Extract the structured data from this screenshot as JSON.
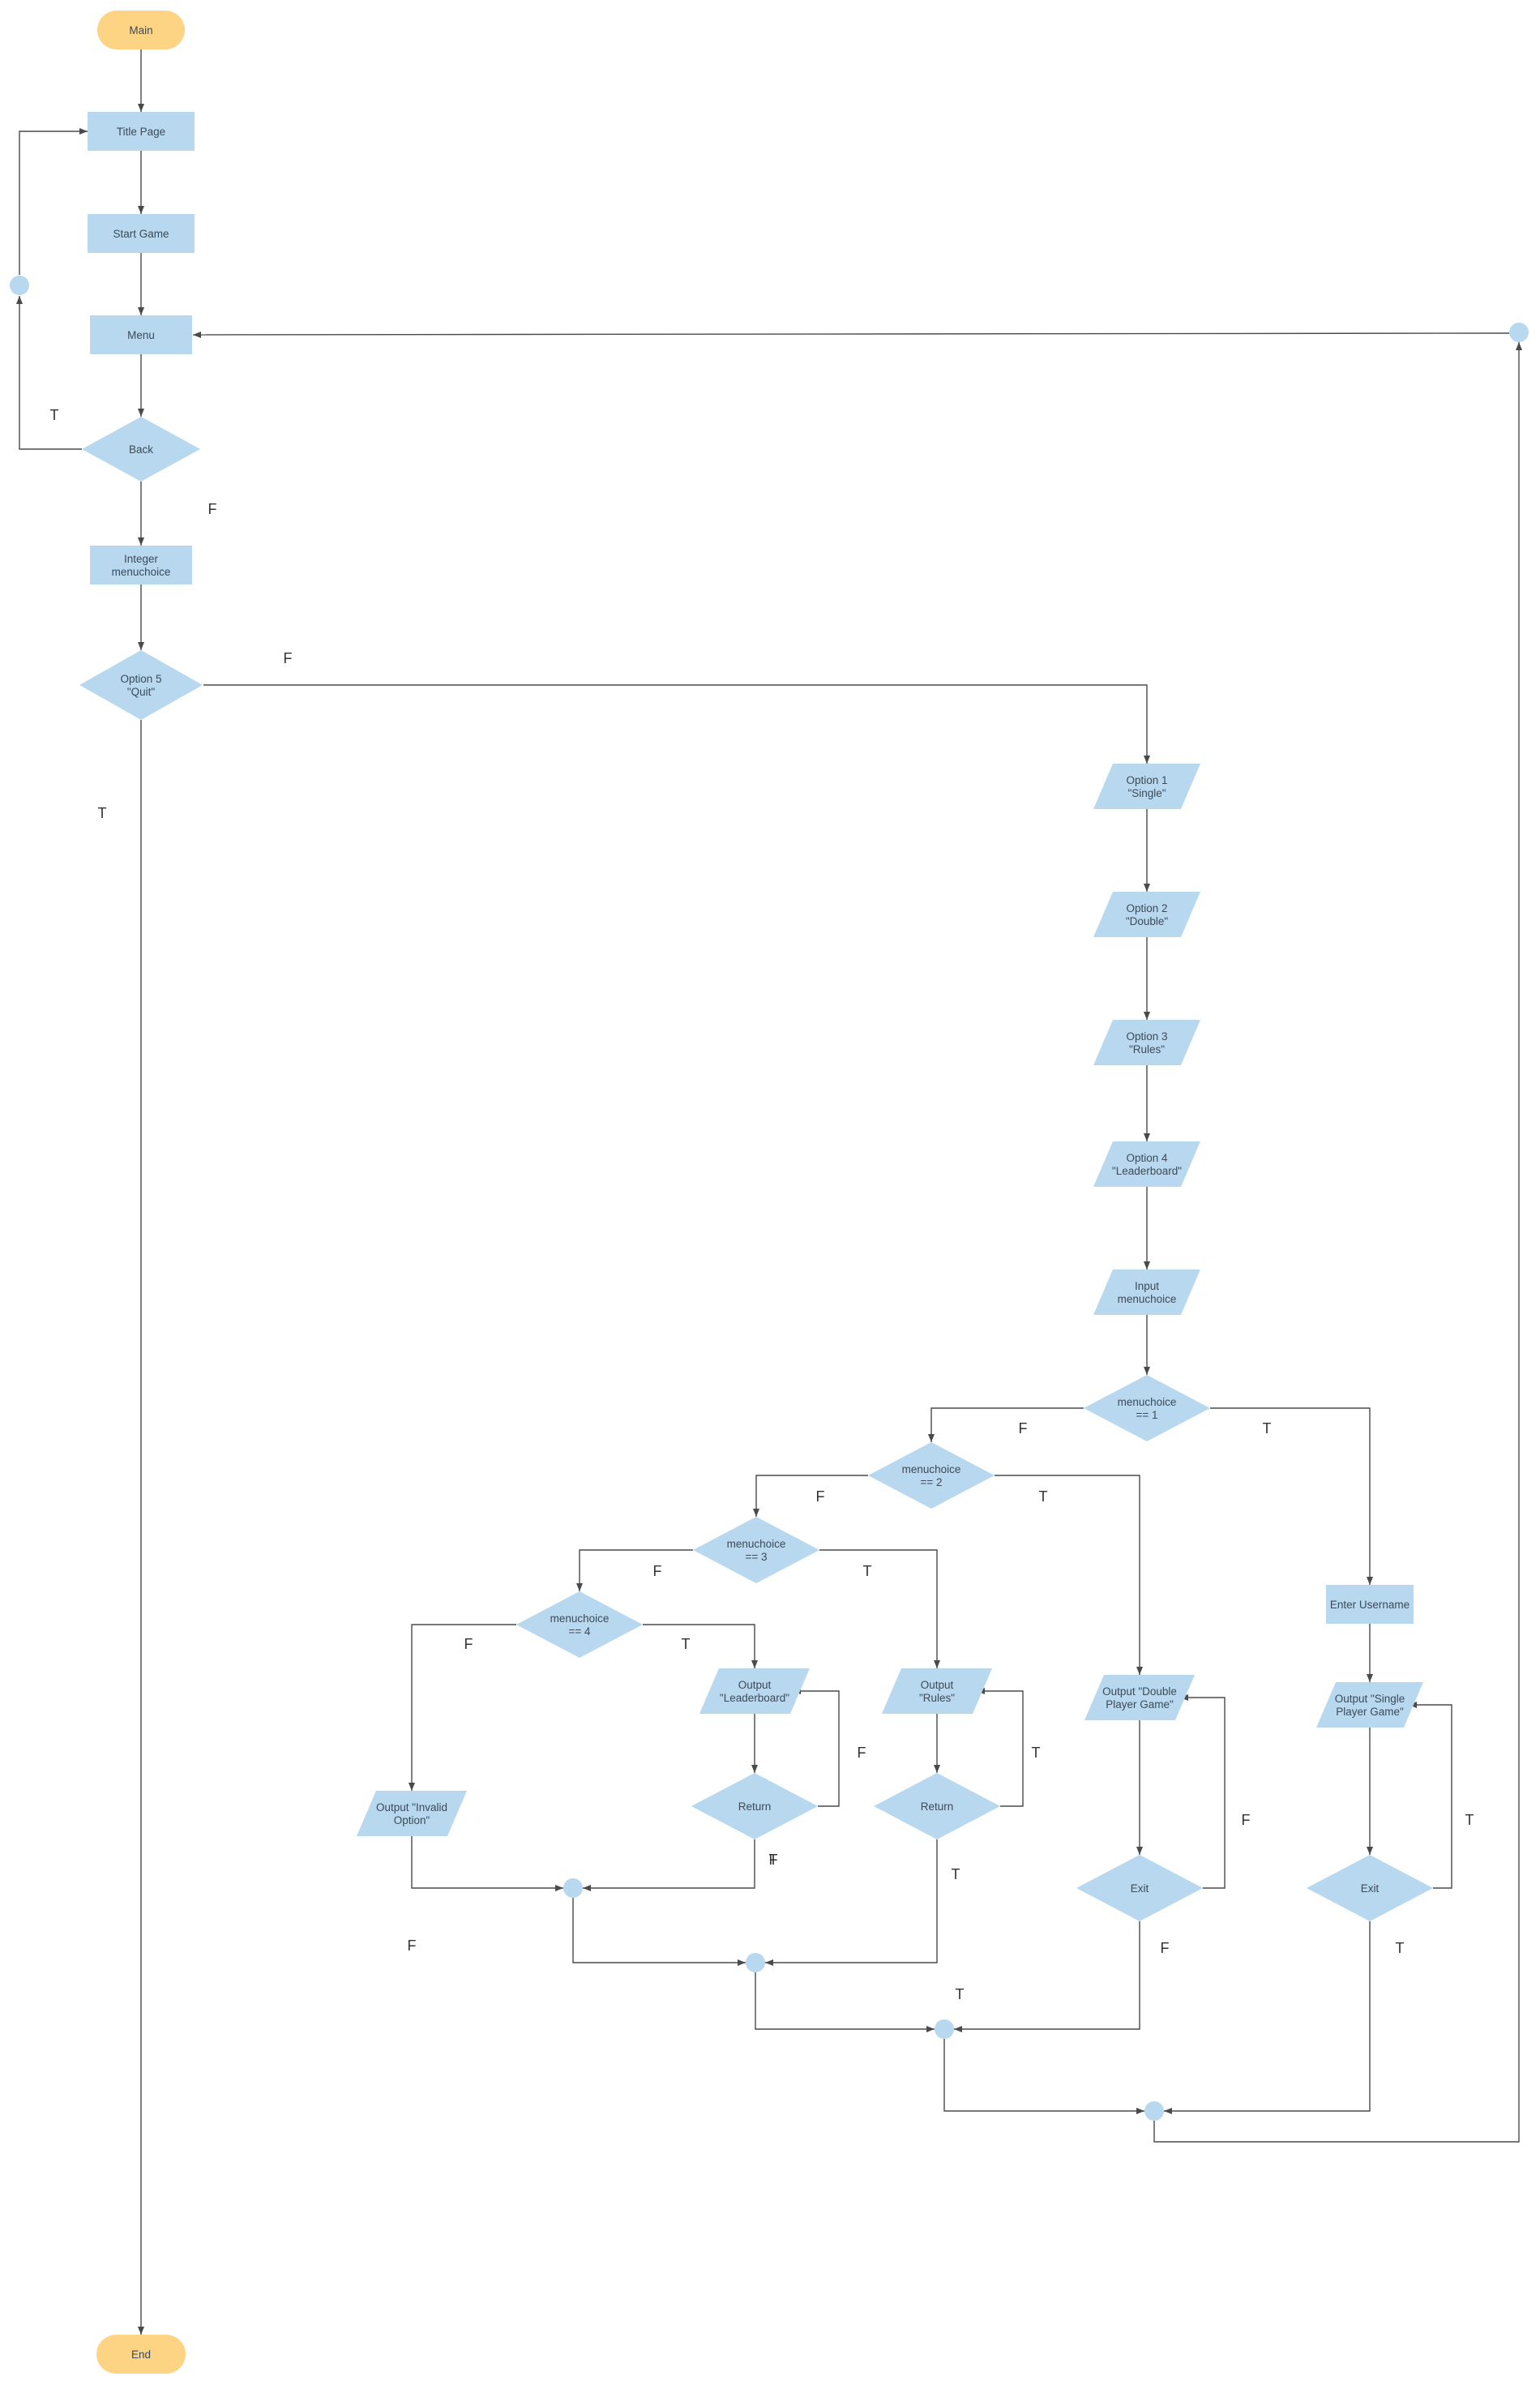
{
  "colors": {
    "terminal_fill": "#fdd484",
    "shape_fill": "#b7d8ef",
    "edge_stroke": "#4a4a4a",
    "text": "#3d4a57"
  },
  "nodes": {
    "main": {
      "label": [
        "Main"
      ]
    },
    "title_page": {
      "label": [
        "Title Page"
      ]
    },
    "start_game": {
      "label": [
        "Start Game"
      ]
    },
    "menu": {
      "label": [
        "Menu"
      ]
    },
    "back": {
      "label": [
        "Back"
      ]
    },
    "integer_menuchoice": {
      "label": [
        "Integer",
        "menuchoice"
      ]
    },
    "option5": {
      "label": [
        "Option 5",
        "\"Quit\""
      ]
    },
    "option1": {
      "label": [
        "Option 1",
        "\"Single\""
      ]
    },
    "option2": {
      "label": [
        "Option 2",
        "\"Double\""
      ]
    },
    "option3": {
      "label": [
        "Option 3",
        "\"Rules\""
      ]
    },
    "option4": {
      "label": [
        "Option 4",
        "\"Leaderboard\""
      ]
    },
    "input_menuchoice": {
      "label": [
        "Input",
        "menuchoice"
      ]
    },
    "mc1": {
      "label": [
        "menuchoice",
        "== 1"
      ]
    },
    "mc2": {
      "label": [
        "menuchoice",
        "== 2"
      ]
    },
    "mc3": {
      "label": [
        "menuchoice",
        "== 3"
      ]
    },
    "mc4": {
      "label": [
        "menuchoice",
        "== 4"
      ]
    },
    "enter_username": {
      "label": [
        "Enter Username"
      ]
    },
    "out_single": {
      "label": [
        "Output \"Single",
        "Player Game\""
      ]
    },
    "exit_single": {
      "label": [
        "Exit"
      ]
    },
    "out_double": {
      "label": [
        "Output \"Double",
        "Player Game\""
      ]
    },
    "exit_double": {
      "label": [
        "Exit"
      ]
    },
    "out_rules": {
      "label": [
        "Output",
        "\"Rules\""
      ]
    },
    "return_rules": {
      "label": [
        "Return"
      ]
    },
    "out_leader": {
      "label": [
        "Output",
        "\"Leaderboard\""
      ]
    },
    "return_leader": {
      "label": [
        "Return"
      ]
    },
    "out_invalid": {
      "label": [
        "Output \"Invalid",
        "Option\""
      ]
    },
    "end": {
      "label": [
        "End"
      ]
    }
  },
  "tf_labels": [
    "T",
    "F",
    "F",
    "T",
    "F",
    "T",
    "F",
    "T",
    "F",
    "T",
    "F",
    "T",
    "F",
    "T",
    "F",
    "T",
    "F",
    "T",
    "F",
    "T",
    "F",
    "T",
    "T"
  ]
}
